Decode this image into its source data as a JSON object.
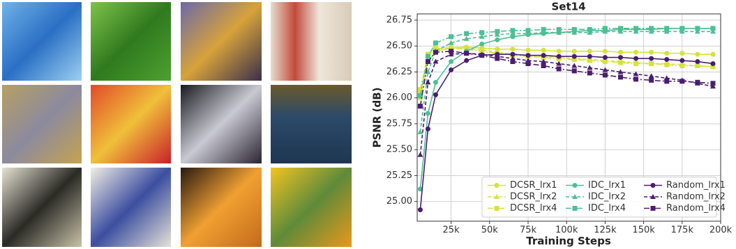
{
  "chart_data": {
    "type": "line",
    "title": "Set14",
    "xlabel": "Training Steps",
    "ylabel": "PSNR (dB)",
    "x": [
      5000,
      10000,
      15000,
      25000,
      35000,
      45000,
      55000,
      65000,
      75000,
      85000,
      95000,
      105000,
      115000,
      125000,
      135000,
      145000,
      155000,
      165000,
      175000,
      185000,
      195000
    ],
    "xlim": [
      3000,
      200000
    ],
    "xticks": [
      {
        "value": 25000,
        "label": "25k"
      },
      {
        "value": 50000,
        "label": "50k"
      },
      {
        "value": 75000,
        "label": "75k"
      },
      {
        "value": 100000,
        "label": "100k"
      },
      {
        "value": 125000,
        "label": "125k"
      },
      {
        "value": 150000,
        "label": "150k"
      },
      {
        "value": 175000,
        "label": "175k"
      },
      {
        "value": 200000,
        "label": "200k"
      }
    ],
    "ylim": [
      24.81,
      26.81
    ],
    "yticks": [
      {
        "value": 25,
        "label": "25.00"
      },
      {
        "value": 25.25,
        "label": "25.25"
      },
      {
        "value": 25.5,
        "label": "25.50"
      },
      {
        "value": 25.75,
        "label": "25.75"
      },
      {
        "value": 26,
        "label": "26.00"
      },
      {
        "value": 26.25,
        "label": "26.25"
      },
      {
        "value": 26.5,
        "label": "26.50"
      },
      {
        "value": 26.75,
        "label": "26.75"
      }
    ],
    "grid": true,
    "legend": "lower right",
    "legend_columns": 3,
    "series": [
      {
        "name": "DCSR_lrx1",
        "color": "#d4e33a",
        "linestyle": "solid",
        "marker": "circle",
        "values": [
          26.05,
          26.35,
          26.45,
          26.48,
          26.49,
          26.48,
          26.47,
          26.47,
          26.46,
          26.46,
          26.45,
          26.45,
          26.45,
          26.45,
          26.44,
          26.44,
          26.44,
          26.43,
          26.43,
          26.42,
          26.42
        ]
      },
      {
        "name": "DCSR_lrx2",
        "color": "#d4e33a",
        "linestyle": "dashed",
        "marker": "triangle",
        "values": [
          26.0,
          26.4,
          26.47,
          26.49,
          26.48,
          26.46,
          26.44,
          26.42,
          26.41,
          26.4,
          26.39,
          26.38,
          26.37,
          26.36,
          26.35,
          26.34,
          26.33,
          26.33,
          26.32,
          26.31,
          26.3
        ]
      },
      {
        "name": "DCSR_lrx4",
        "color": "#d4e33a",
        "linestyle": "dashdot",
        "marker": "square",
        "values": [
          26.08,
          26.42,
          26.48,
          26.48,
          26.47,
          26.45,
          26.43,
          26.41,
          26.4,
          26.39,
          26.38,
          26.37,
          26.36,
          26.35,
          26.34,
          26.33,
          26.33,
          26.32,
          26.31,
          26.31,
          26.3
        ]
      },
      {
        "name": "IDC_lrx1",
        "color": "#4cbf93",
        "linestyle": "solid",
        "marker": "circle",
        "values": [
          25.12,
          25.85,
          26.15,
          26.35,
          26.45,
          26.52,
          26.56,
          26.59,
          26.61,
          26.62,
          26.63,
          26.64,
          26.65,
          26.65,
          26.66,
          26.66,
          26.66,
          26.67,
          26.67,
          26.67,
          26.67
        ]
      },
      {
        "name": "IDC_lrx2",
        "color": "#4cbf93",
        "linestyle": "dashed",
        "marker": "triangle",
        "values": [
          25.67,
          26.25,
          26.45,
          26.53,
          26.57,
          26.59,
          26.61,
          26.62,
          26.62,
          26.63,
          26.63,
          26.63,
          26.63,
          26.64,
          26.64,
          26.64,
          26.64,
          26.64,
          26.64,
          26.64,
          26.64
        ]
      },
      {
        "name": "IDC_lrx4",
        "color": "#4cbf93",
        "linestyle": "dashdot",
        "marker": "square",
        "values": [
          26.02,
          26.4,
          26.53,
          26.59,
          26.62,
          26.63,
          26.64,
          26.65,
          26.65,
          26.66,
          26.66,
          26.66,
          26.66,
          26.67,
          26.67,
          26.67,
          26.67,
          26.67,
          26.67,
          26.67,
          26.67
        ]
      },
      {
        "name": "Random_lrx1",
        "color": "#4a1d6e",
        "linestyle": "solid",
        "marker": "circle",
        "values": [
          24.92,
          25.7,
          26.03,
          26.27,
          26.36,
          26.41,
          26.42,
          26.42,
          26.41,
          26.41,
          26.4,
          26.4,
          26.4,
          26.39,
          26.39,
          26.38,
          26.38,
          26.37,
          26.36,
          26.35,
          26.33
        ]
      },
      {
        "name": "Random_lrx2",
        "color": "#4a1d6e",
        "linestyle": "dashed",
        "marker": "triangle",
        "values": [
          25.45,
          26.15,
          26.35,
          26.42,
          26.43,
          26.42,
          26.4,
          26.38,
          26.36,
          26.35,
          26.33,
          26.31,
          26.29,
          26.27,
          26.25,
          26.23,
          26.21,
          26.19,
          26.17,
          26.14,
          26.11
        ]
      },
      {
        "name": "Random_lrx4",
        "color": "#4a1d6e",
        "linestyle": "dashdot",
        "marker": "square",
        "values": [
          25.92,
          26.35,
          26.44,
          26.45,
          26.43,
          26.41,
          26.38,
          26.35,
          26.33,
          26.31,
          26.28,
          26.26,
          26.24,
          26.22,
          26.2,
          26.18,
          26.17,
          26.16,
          26.16,
          26.15,
          26.14
        ]
      }
    ]
  }
}
